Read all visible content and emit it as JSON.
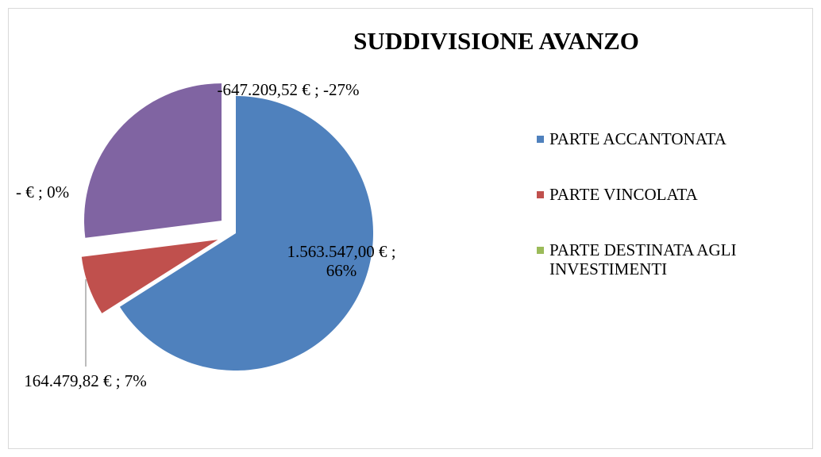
{
  "chart_data": {
    "type": "pie",
    "title": "SUDDIVISIONE AVANZO",
    "categories": [
      "PARTE ACCANTONATA",
      "PARTE VINCOLATA",
      "PARTE DESTINATA AGLI INVESTIMENTI",
      null
    ],
    "values": [
      66,
      7,
      0,
      -27
    ],
    "value_labels": [
      "1.563.547,00 € ; 66%",
      "164.479,82 € ; 7%",
      "-   € ; 0%",
      "-647.209,52 € ; -27%"
    ],
    "colors": [
      "#4f81bd",
      "#c0504d",
      "#9bbb59",
      "#8064a2"
    ],
    "legend": "right"
  }
}
